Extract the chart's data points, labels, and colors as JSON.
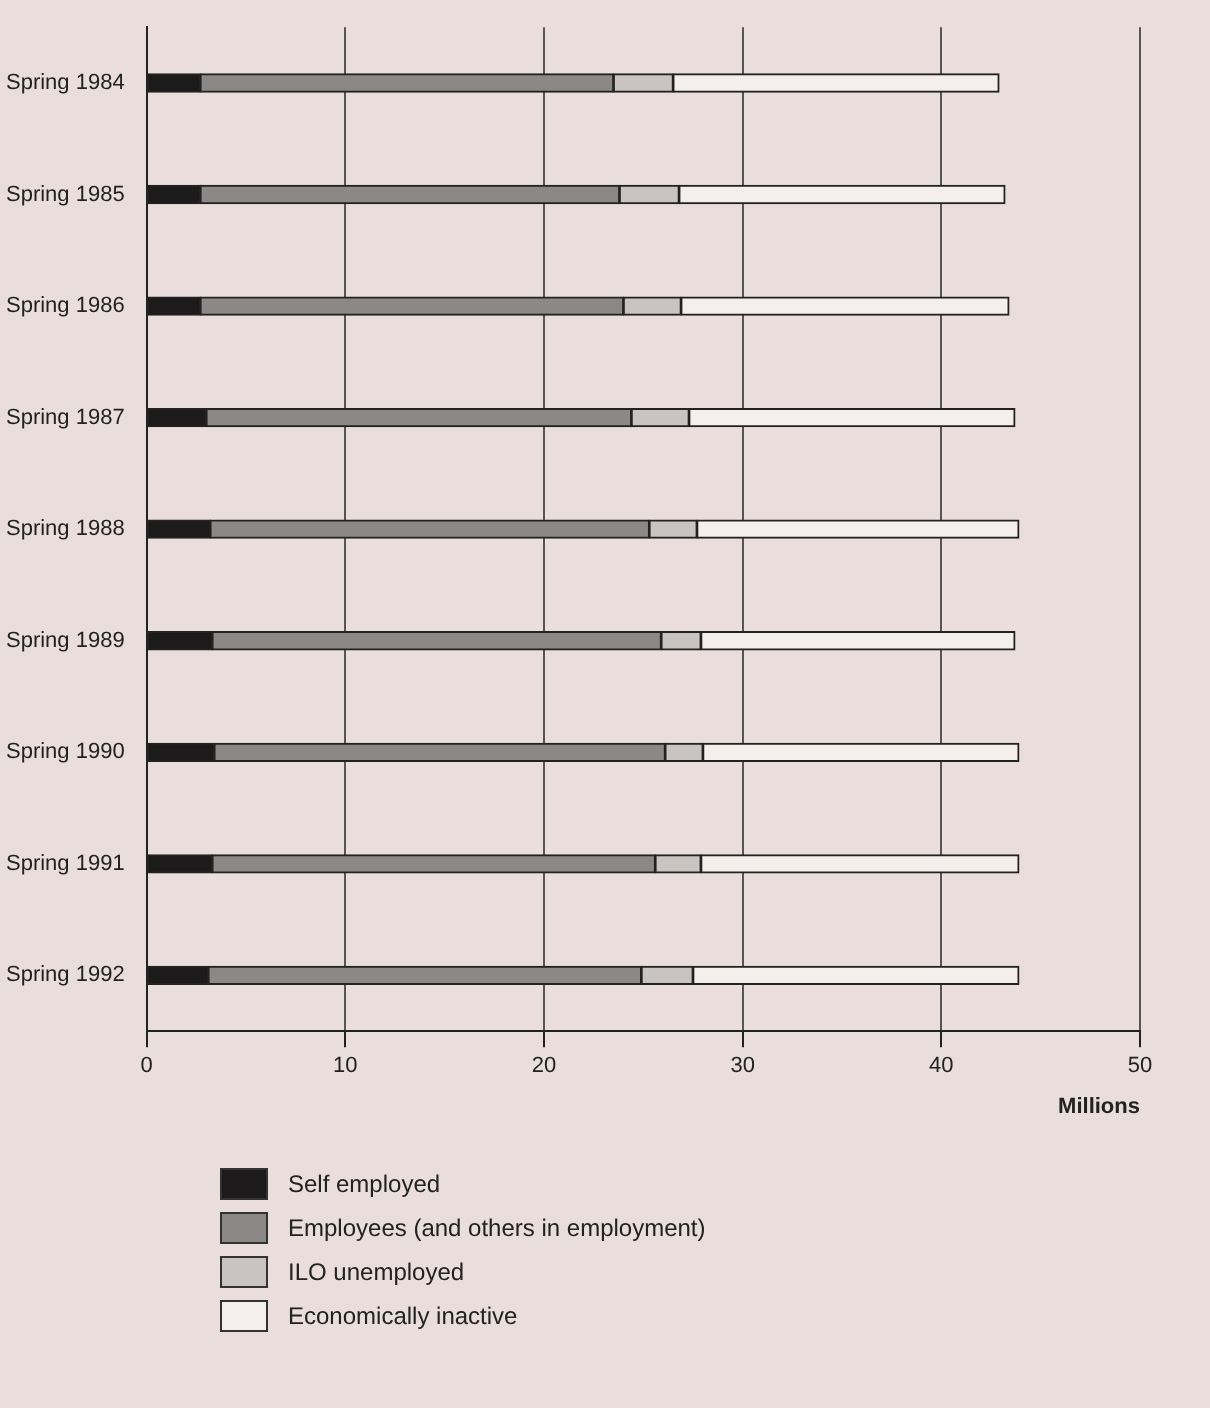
{
  "chart_data": {
    "type": "bar",
    "orientation": "horizontal",
    "stacked": true,
    "xlabel": "Millions",
    "categories": [
      "Spring 1984",
      "Spring 1985",
      "Spring 1986",
      "Spring 1987",
      "Spring 1988",
      "Spring 1989",
      "Spring 1990",
      "Spring 1991",
      "Spring 1992"
    ],
    "series": [
      {
        "name": "Self employed",
        "color": "#1c1a1a",
        "values": [
          2.7,
          2.7,
          2.7,
          3.0,
          3.2,
          3.3,
          3.4,
          3.3,
          3.1
        ]
      },
      {
        "name": "Employees (and others in employment)",
        "color": "#8c8888",
        "values": [
          20.8,
          21.1,
          21.3,
          21.4,
          22.1,
          22.6,
          22.7,
          22.3,
          21.8
        ]
      },
      {
        "name": "ILO unemployed",
        "color": "#c9c3c2",
        "values": [
          3.0,
          3.0,
          2.9,
          2.9,
          2.4,
          2.0,
          1.9,
          2.3,
          2.6
        ]
      },
      {
        "name": "Economically inactive",
        "color": "#f4eeec",
        "values": [
          16.4,
          16.4,
          16.5,
          16.4,
          16.2,
          15.8,
          15.9,
          16.0,
          16.4
        ]
      }
    ],
    "xlim": [
      0,
      50
    ],
    "xticks": [
      0,
      10,
      20,
      30,
      40,
      50
    ],
    "grid": "x",
    "legend": "bottom"
  }
}
